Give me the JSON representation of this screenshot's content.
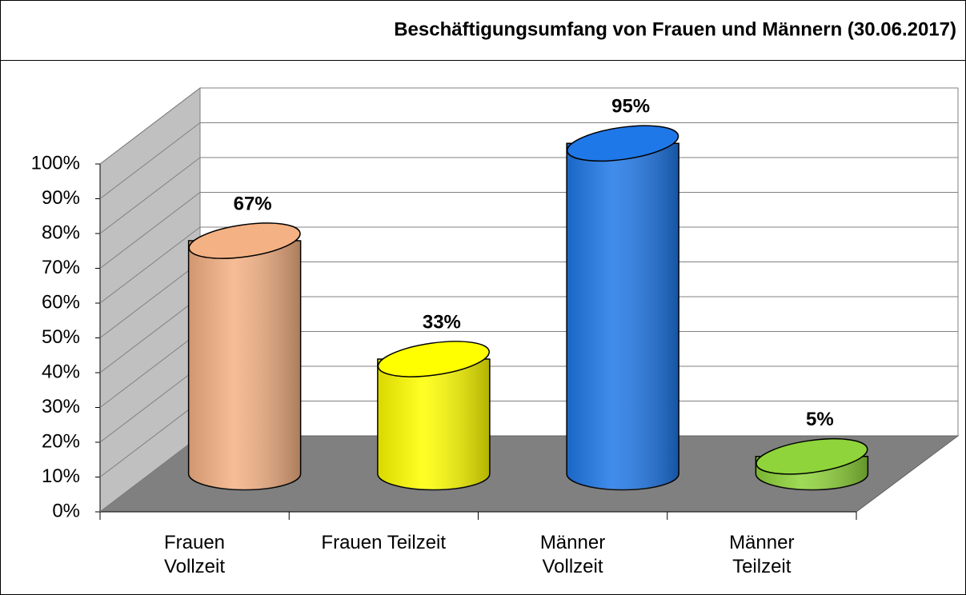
{
  "chart_data": {
    "type": "bar3d",
    "title": "Beschäftigungsumfang von Frauen und Männern (30.06.2017)",
    "categories": [
      "Frauen\nVollzeit",
      "Frauen Teilzeit",
      "Männer\nVollzeit",
      "Männer\nTeilzeit"
    ],
    "values": [
      67,
      33,
      95,
      5
    ],
    "value_labels": [
      "67%",
      "33%",
      "95%",
      "5%"
    ],
    "colors": [
      "#f4b183",
      "#ffff00",
      "#1f78e8",
      "#8fd43a"
    ],
    "ylim": [
      0,
      100
    ],
    "yticks": [
      {
        "value": 0,
        "label": "0%"
      },
      {
        "value": 10,
        "label": "10%"
      },
      {
        "value": 20,
        "label": "20%"
      },
      {
        "value": 30,
        "label": "30%"
      },
      {
        "value": 40,
        "label": "40%"
      },
      {
        "value": 50,
        "label": "50%"
      },
      {
        "value": 60,
        "label": "60%"
      },
      {
        "value": 70,
        "label": "70%"
      },
      {
        "value": 80,
        "label": "80%"
      },
      {
        "value": 90,
        "label": "90%"
      },
      {
        "value": 100,
        "label": "100%"
      }
    ],
    "grid": true
  }
}
